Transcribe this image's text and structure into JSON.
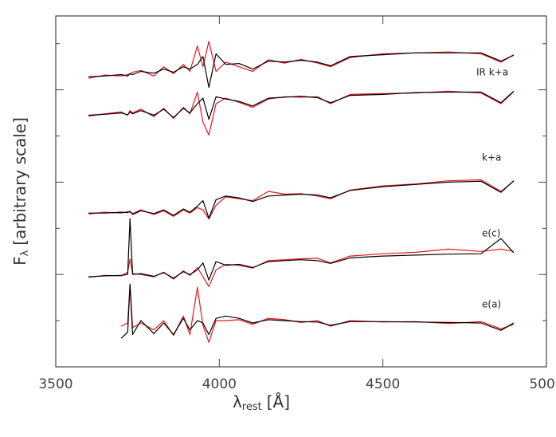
{
  "chart_data": {
    "type": "line",
    "xlabel": {
      "main": "λ",
      "sub": "rest",
      "unit": "[Å]"
    },
    "ylabel": {
      "main": "F",
      "sub": "λ",
      "rest": "[arbitrary scale]"
    },
    "xlim": [
      3500,
      5000
    ],
    "xticks": [
      3500,
      4000,
      4500,
      5000
    ],
    "ylim": [
      0,
      7.6
    ],
    "yticks": [
      1,
      2,
      3,
      4,
      5,
      6,
      7
    ],
    "annotations": [
      "IR k+a",
      "k+a",
      "e(c)",
      "e(a)"
    ],
    "x": [
      3600,
      3650,
      3700,
      3720,
      3727,
      3735,
      3760,
      3800,
      3830,
      3860,
      3890,
      3910,
      3933,
      3950,
      3968,
      3990,
      4020,
      4060,
      4102,
      4150,
      4200,
      4250,
      4300,
      4340,
      4400,
      4500,
      4600,
      4700,
      4800,
      4861,
      4900
    ],
    "series": [
      {
        "color": "#e8141e",
        "values": [
          6.25,
          6.32,
          6.3,
          6.33,
          6.35,
          6.38,
          6.42,
          6.3,
          6.5,
          6.35,
          6.55,
          6.4,
          6.95,
          6.5,
          7.05,
          6.4,
          6.6,
          6.5,
          6.4,
          6.65,
          6.58,
          6.66,
          6.58,
          6.5,
          6.7,
          6.78,
          6.8,
          6.82,
          6.78,
          6.6,
          6.76
        ]
      },
      {
        "color": "#000000",
        "values": [
          6.28,
          6.3,
          6.33,
          6.3,
          6.35,
          6.33,
          6.4,
          6.36,
          6.45,
          6.38,
          6.5,
          6.45,
          6.55,
          6.72,
          6.05,
          6.78,
          6.55,
          6.57,
          6.45,
          6.62,
          6.6,
          6.64,
          6.6,
          6.52,
          6.72,
          6.76,
          6.8,
          6.8,
          6.8,
          6.62,
          6.75
        ]
      },
      {
        "color": "#e8141e",
        "values": [
          5.43,
          5.48,
          5.52,
          5.45,
          5.55,
          5.5,
          5.58,
          5.42,
          5.6,
          5.38,
          5.62,
          5.48,
          5.95,
          5.3,
          5.02,
          5.7,
          5.82,
          5.73,
          5.62,
          5.8,
          5.85,
          5.84,
          5.85,
          5.7,
          5.9,
          5.92,
          5.93,
          5.97,
          5.93,
          5.7,
          5.96
        ]
      },
      {
        "color": "#000000",
        "values": [
          5.45,
          5.47,
          5.5,
          5.46,
          5.52,
          5.48,
          5.55,
          5.45,
          5.58,
          5.4,
          5.6,
          5.5,
          5.7,
          5.82,
          5.36,
          5.85,
          5.8,
          5.75,
          5.65,
          5.82,
          5.84,
          5.86,
          5.83,
          5.72,
          5.88,
          5.9,
          5.94,
          5.95,
          5.95,
          5.72,
          5.97
        ]
      },
      {
        "color": "#e8141e",
        "values": [
          3.31,
          3.35,
          3.33,
          3.36,
          3.35,
          3.32,
          3.4,
          3.3,
          3.38,
          3.26,
          3.4,
          3.33,
          3.45,
          3.4,
          3.2,
          3.5,
          3.68,
          3.64,
          3.6,
          3.8,
          3.74,
          3.75,
          3.7,
          3.64,
          3.83,
          3.92,
          3.96,
          4.03,
          4.05,
          3.8,
          4.02
        ]
      },
      {
        "color": "#000000",
        "values": [
          3.33,
          3.33,
          3.35,
          3.34,
          3.37,
          3.3,
          3.38,
          3.32,
          3.4,
          3.28,
          3.42,
          3.35,
          3.48,
          3.6,
          3.22,
          3.62,
          3.7,
          3.66,
          3.58,
          3.7,
          3.72,
          3.74,
          3.72,
          3.66,
          3.82,
          3.9,
          3.95,
          4.0,
          4.02,
          3.78,
          4.03
        ]
      },
      {
        "color": "#e8141e",
        "values": [
          1.94,
          1.98,
          1.97,
          2.05,
          2.34,
          2.02,
          2.0,
          1.95,
          2.05,
          1.9,
          2.08,
          1.98,
          2.15,
          1.95,
          1.74,
          2.1,
          2.22,
          2.2,
          2.14,
          2.3,
          2.32,
          2.34,
          2.35,
          2.25,
          2.4,
          2.45,
          2.48,
          2.55,
          2.5,
          2.55,
          2.5
        ]
      },
      {
        "color": "#000000",
        "values": [
          1.95,
          1.97,
          1.98,
          2.0,
          3.21,
          2.0,
          2.02,
          1.96,
          2.04,
          1.92,
          2.06,
          2.0,
          2.1,
          2.25,
          1.88,
          2.28,
          2.2,
          2.22,
          2.15,
          2.28,
          2.3,
          2.32,
          2.3,
          2.24,
          2.36,
          2.4,
          2.42,
          2.44,
          2.45,
          2.78,
          2.47
        ]
      },
      {
        "color": "#e8141e",
        "values": [
          null,
          null,
          0.88,
          0.95,
          1.79,
          0.85,
          0.95,
          0.8,
          1.0,
          0.68,
          1.1,
          0.7,
          1.72,
          0.9,
          0.53,
          1.0,
          1.0,
          1.02,
          0.92,
          1.05,
          1.02,
          0.96,
          1.0,
          0.88,
          1.0,
          0.97,
          0.98,
          0.94,
          0.98,
          0.82,
          0.92
        ]
      },
      {
        "color": "#000000",
        "values": [
          null,
          null,
          0.62,
          0.75,
          1.79,
          0.7,
          1.0,
          0.72,
          0.95,
          0.7,
          1.05,
          0.8,
          1.0,
          0.95,
          0.7,
          1.05,
          1.1,
          1.05,
          0.95,
          1.02,
          1.0,
          0.98,
          0.97,
          0.9,
          0.98,
          0.98,
          0.97,
          0.96,
          0.95,
          0.79,
          0.95
        ]
      }
    ]
  }
}
